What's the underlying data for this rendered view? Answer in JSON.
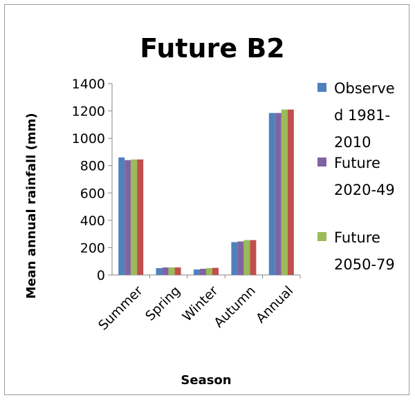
{
  "chart_data": {
    "type": "bar",
    "title": "Future B2",
    "xlabel": "Season",
    "ylabel": "Mean annual rainfall (mm)",
    "ylim": [
      0,
      1400
    ],
    "yticks": [
      0,
      200,
      400,
      600,
      800,
      1000,
      1200,
      1400
    ],
    "categories": [
      "Summer",
      "Spring",
      "Winter",
      "Autumn",
      "Annual"
    ],
    "series": [
      {
        "name": "Observed 1981-2010",
        "legend_lines": [
          "Observe",
          "d 1981-",
          "2010"
        ],
        "color": "#4f81bd",
        "values": [
          860,
          50,
          40,
          240,
          1185
        ]
      },
      {
        "name": "Future 2020-49",
        "legend_lines": [
          "Future",
          "2020-49"
        ],
        "color": "#8064a2",
        "values": [
          840,
          55,
          45,
          245,
          1185
        ]
      },
      {
        "name": "Future 2050-79",
        "legend_lines": [
          "Future",
          "2050-79"
        ],
        "color": "#9bbb59",
        "values": [
          845,
          55,
          50,
          255,
          1210
        ]
      },
      {
        "name": "",
        "legend_lines": [],
        "color": "#c0504d",
        "values": [
          845,
          55,
          52,
          255,
          1210
        ]
      }
    ],
    "grid": false,
    "legend_position": "right"
  }
}
